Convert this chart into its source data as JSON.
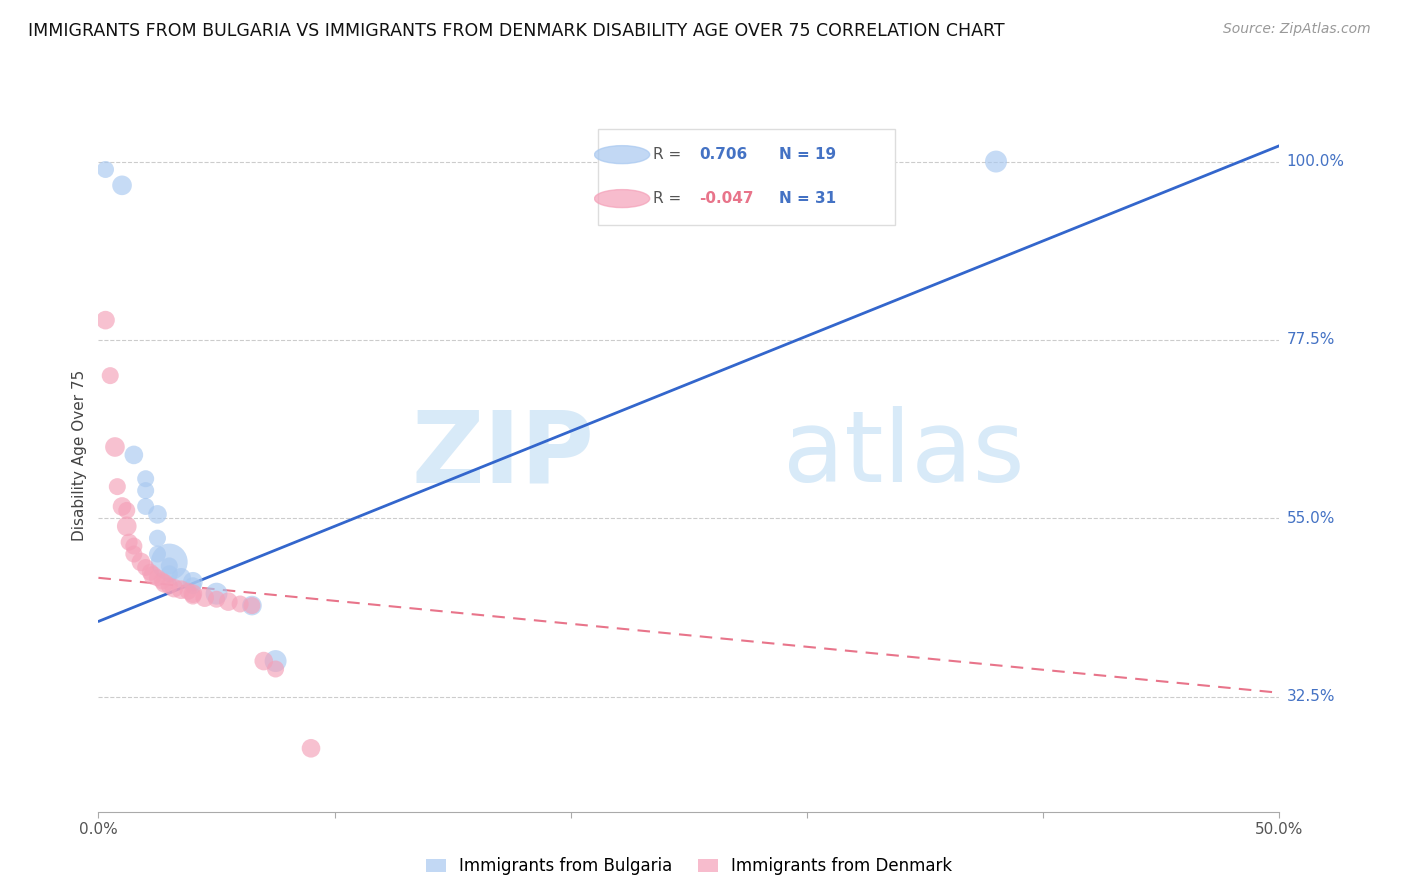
{
  "title": "IMMIGRANTS FROM BULGARIA VS IMMIGRANTS FROM DENMARK DISABILITY AGE OVER 75 CORRELATION CHART",
  "source": "Source: ZipAtlas.com",
  "ylabel": "Disability Age Over 75",
  "y_tick_labels": [
    "32.5%",
    "55.0%",
    "77.5%",
    "100.0%"
  ],
  "y_tick_values": [
    0.325,
    0.55,
    0.775,
    1.0
  ],
  "x_range": [
    0.0,
    0.5
  ],
  "y_range": [
    0.18,
    1.08
  ],
  "color_bulgaria": "#A8C8F0",
  "color_denmark": "#F4A0B8",
  "color_regression_bulgaria": "#3366CC",
  "color_regression_denmark": "#E8748A",
  "watermark_zip": "ZIP",
  "watermark_atlas": "atlas",
  "watermark_color": "#D8EAF8",
  "bulgaria_points": [
    [
      0.003,
      0.99,
      150
    ],
    [
      0.01,
      0.97,
      200
    ],
    [
      0.015,
      0.63,
      180
    ],
    [
      0.02,
      0.6,
      150
    ],
    [
      0.02,
      0.585,
      150
    ],
    [
      0.02,
      0.565,
      150
    ],
    [
      0.025,
      0.555,
      180
    ],
    [
      0.025,
      0.525,
      150
    ],
    [
      0.025,
      0.505,
      150
    ],
    [
      0.03,
      0.495,
      700
    ],
    [
      0.03,
      0.49,
      150
    ],
    [
      0.03,
      0.48,
      150
    ],
    [
      0.035,
      0.475,
      200
    ],
    [
      0.04,
      0.47,
      200
    ],
    [
      0.04,
      0.465,
      150
    ],
    [
      0.05,
      0.455,
      250
    ],
    [
      0.065,
      0.44,
      200
    ],
    [
      0.075,
      0.37,
      250
    ],
    [
      0.38,
      1.0,
      250
    ]
  ],
  "denmark_points": [
    [
      0.003,
      0.8,
      180
    ],
    [
      0.005,
      0.73,
      150
    ],
    [
      0.007,
      0.64,
      200
    ],
    [
      0.008,
      0.59,
      150
    ],
    [
      0.01,
      0.565,
      180
    ],
    [
      0.012,
      0.56,
      150
    ],
    [
      0.012,
      0.54,
      200
    ],
    [
      0.013,
      0.52,
      150
    ],
    [
      0.015,
      0.515,
      150
    ],
    [
      0.015,
      0.505,
      150
    ],
    [
      0.018,
      0.495,
      180
    ],
    [
      0.02,
      0.488,
      150
    ],
    [
      0.022,
      0.482,
      150
    ],
    [
      0.023,
      0.478,
      180
    ],
    [
      0.025,
      0.475,
      150
    ],
    [
      0.027,
      0.471,
      150
    ],
    [
      0.028,
      0.468,
      180
    ],
    [
      0.03,
      0.465,
      150
    ],
    [
      0.032,
      0.462,
      180
    ],
    [
      0.035,
      0.46,
      180
    ],
    [
      0.038,
      0.458,
      150
    ],
    [
      0.04,
      0.455,
      180
    ],
    [
      0.04,
      0.452,
      150
    ],
    [
      0.045,
      0.45,
      180
    ],
    [
      0.05,
      0.448,
      150
    ],
    [
      0.055,
      0.445,
      180
    ],
    [
      0.06,
      0.442,
      150
    ],
    [
      0.065,
      0.44,
      150
    ],
    [
      0.07,
      0.37,
      180
    ],
    [
      0.075,
      0.36,
      150
    ],
    [
      0.09,
      0.26,
      180
    ]
  ],
  "regression_bulgaria_x0": 0.0,
  "regression_bulgaria_y0": 0.42,
  "regression_bulgaria_x1": 0.5,
  "regression_bulgaria_y1": 1.02,
  "regression_denmark_x0": 0.0,
  "regression_denmark_y0": 0.475,
  "regression_denmark_x1": 0.5,
  "regression_denmark_y1": 0.33
}
